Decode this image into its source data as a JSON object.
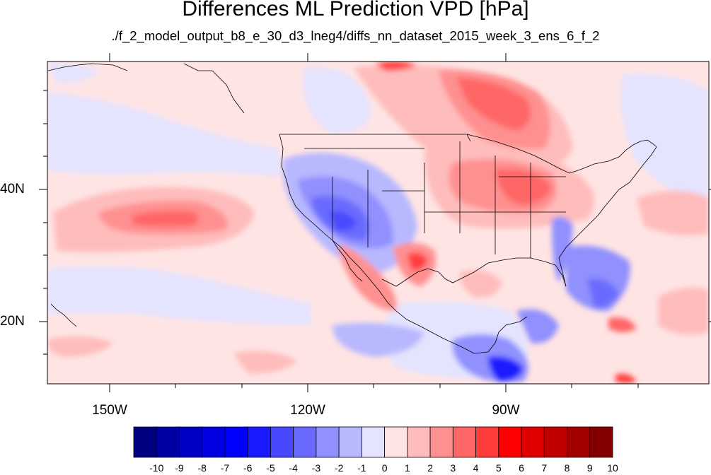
{
  "title": "Differences ML Prediction VPD [hPa]",
  "subtitle": "./f_2_model_output_b8_e_30_d3_lneg4/diffs_nn_dataset_2015_week_3_ens_6_f_2",
  "axes": {
    "lon_labels": [
      "150W",
      "120W",
      "90W"
    ],
    "lat_labels": [
      "40N",
      "20N"
    ]
  },
  "colorbar": {
    "labels": [
      "-10",
      "-9",
      "-8",
      "-7",
      "-6",
      "-5",
      "-4",
      "-3",
      "-2",
      "-1",
      "0",
      "1",
      "2",
      "3",
      "4",
      "5",
      "6",
      "7",
      "8",
      "9",
      "10"
    ],
    "colors": [
      "#000080",
      "#0000a3",
      "#0000c4",
      "#0000e0",
      "#0000ff",
      "#1a1aff",
      "#4848ff",
      "#6a6aff",
      "#9090ff",
      "#b8b8ff",
      "#e4e4ff",
      "#ffe4e4",
      "#ffbcbc",
      "#ff9090",
      "#ff6666",
      "#ff3c3c",
      "#ff0000",
      "#e00000",
      "#c00000",
      "#a00000",
      "#840000"
    ]
  },
  "map_colors": {
    "background": "#ffe4e4",
    "neutral_blue": "#e4e4ff",
    "coast": "#000000"
  }
}
